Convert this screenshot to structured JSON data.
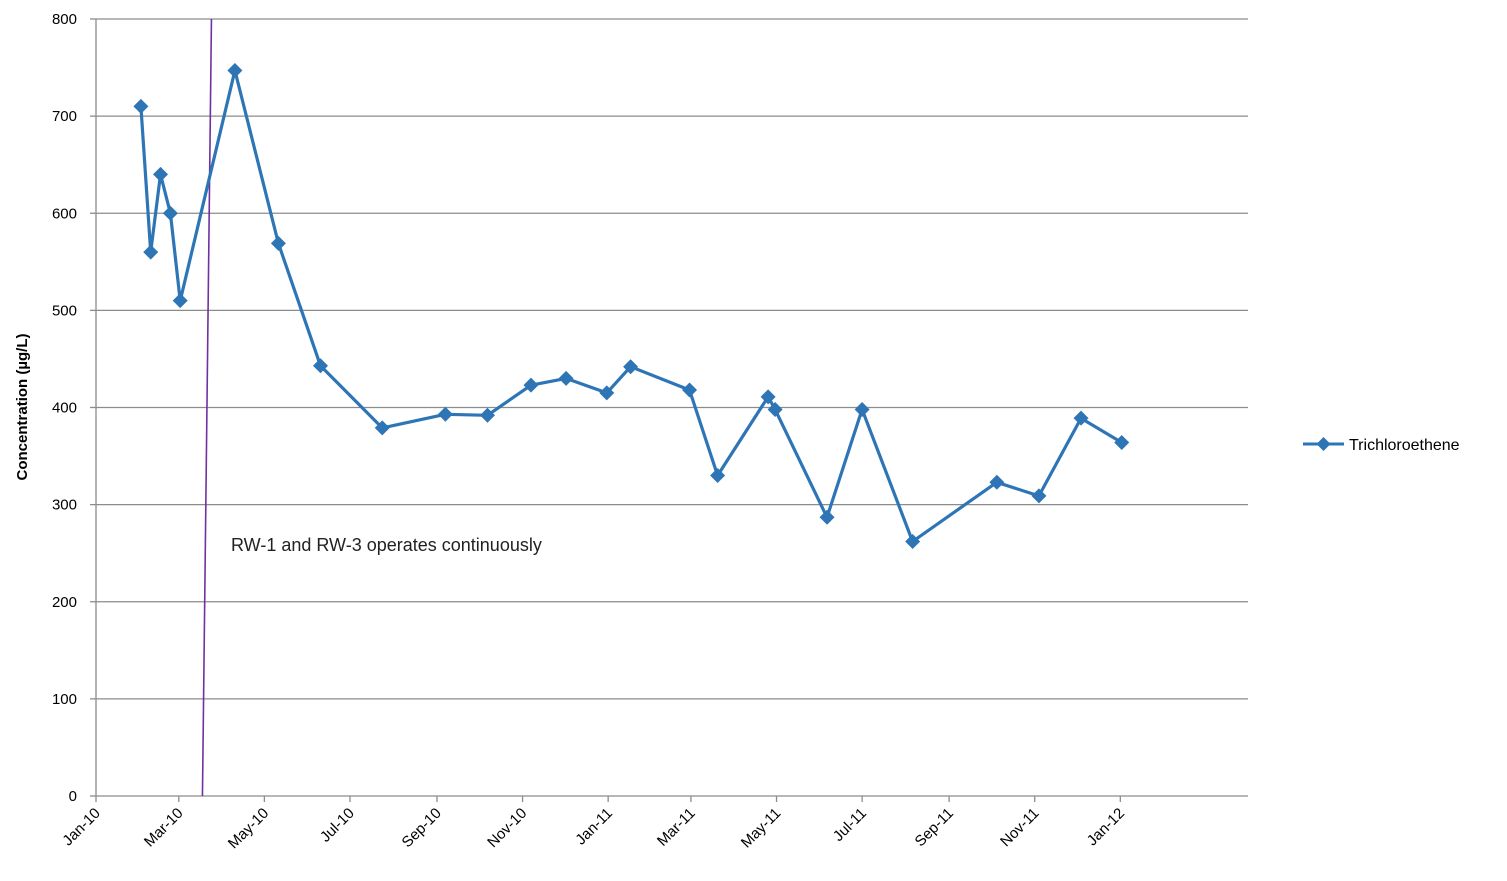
{
  "chart_data": {
    "type": "line",
    "title": "",
    "xlabel": "",
    "ylabel": "Concentration (µg/L)",
    "ylim": [
      0,
      800
    ],
    "yticks": [
      0,
      100,
      200,
      300,
      400,
      500,
      600,
      700,
      800
    ],
    "xlim": [
      "2010-01-01",
      "2012-04-01"
    ],
    "xtick_labels": [
      "Jan-10",
      "Mar-10",
      "May-10",
      "Jul-10",
      "Sep-10",
      "Nov-10",
      "Jan-11",
      "Mar-11",
      "May-11",
      "Jul-11",
      "Sep-11",
      "Nov-11",
      "Jan-12"
    ],
    "xtick_dates": [
      "2010-01-01",
      "2010-03-01",
      "2010-05-01",
      "2010-07-01",
      "2010-09-01",
      "2010-11-01",
      "2011-01-01",
      "2011-03-01",
      "2011-05-01",
      "2011-07-01",
      "2011-09-01",
      "2011-11-01",
      "2012-01-01"
    ],
    "grid": "horizontal",
    "legend_position": "right",
    "series": [
      {
        "name": "Trichloroethene",
        "color": "#2E75B6",
        "marker": "diamond",
        "x": [
          "2010-02-02",
          "2010-02-09",
          "2010-02-16",
          "2010-02-23",
          "2010-03-02",
          "2010-04-10",
          "2010-05-11",
          "2010-06-10",
          "2010-07-24",
          "2010-09-07",
          "2010-10-07",
          "2010-11-07",
          "2010-12-02",
          "2010-12-31",
          "2011-01-17",
          "2011-02-28",
          "2011-03-20",
          "2011-04-25",
          "2011-04-30",
          "2011-06-06",
          "2011-07-01",
          "2011-08-06",
          "2011-10-05",
          "2011-11-04",
          "2011-12-04",
          "2012-01-02"
        ],
        "values": [
          710,
          560,
          640,
          600,
          510,
          747,
          569,
          443,
          379,
          393,
          392,
          423,
          430,
          415,
          442,
          418,
          330,
          411,
          398,
          287,
          398,
          262,
          323,
          309,
          389,
          364
        ]
      }
    ],
    "annotations": [
      {
        "text": "RW-1 and RW-3 operates continuously",
        "color": "#7030A0",
        "marker_line_date": "2010-03-20"
      }
    ]
  }
}
